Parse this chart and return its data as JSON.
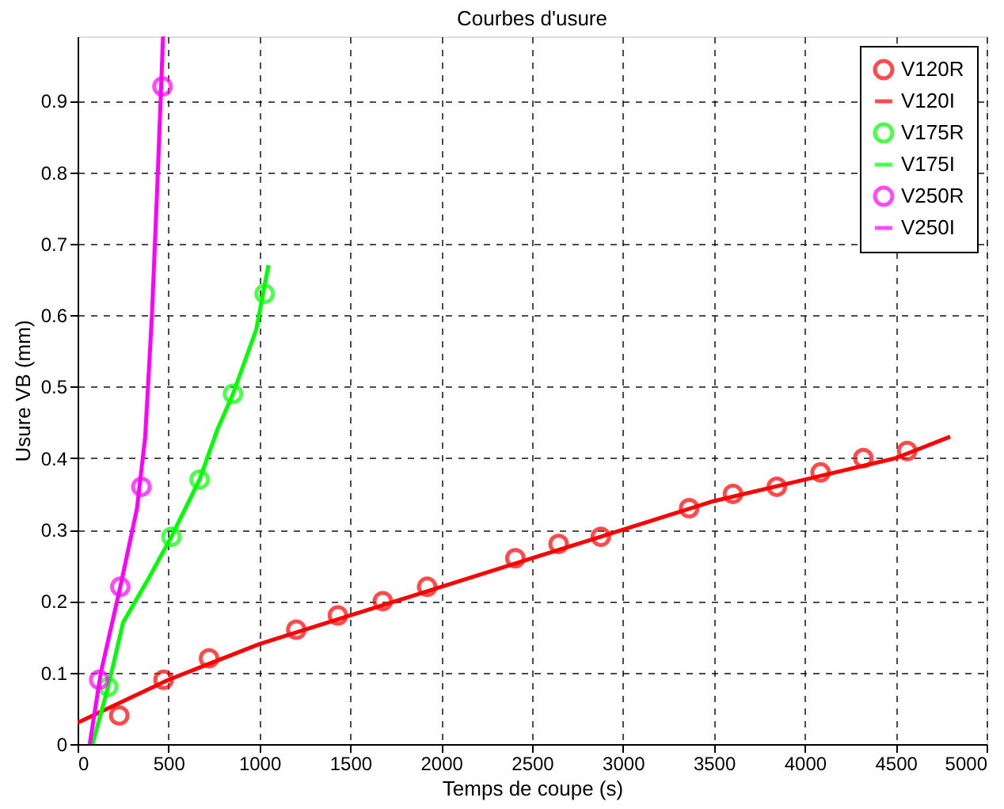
{
  "chart_data": {
    "type": "line",
    "title": "Courbes d'usure",
    "xlabel": "Temps de coupe (s)",
    "ylabel": "Usure VB (mm)",
    "xlim": [
      0,
      5000
    ],
    "xticks": [
      0,
      500,
      1000,
      1500,
      2000,
      2500,
      3000,
      3500,
      4000,
      4500,
      5000
    ],
    "ylim": [
      0,
      0.99
    ],
    "yticks": [
      0,
      0.1,
      0.2,
      0.3,
      0.4,
      0.5,
      0.6,
      0.7,
      0.8,
      0.9
    ],
    "grid": true,
    "legend": "top right",
    "series": [
      {
        "name": "V120R",
        "type": "scatter",
        "marker": "circle",
        "color": "#ff0000",
        "x": [
          229,
          473,
          723,
          1203,
          1432,
          1679,
          1923,
          2408,
          2646,
          2878,
          3364,
          3605,
          3846,
          4087,
          4322,
          4563
        ],
        "values": [
          0.04,
          0.09,
          0.12,
          0.16,
          0.18,
          0.2,
          0.22,
          0.26,
          0.28,
          0.29,
          0.33,
          0.35,
          0.36,
          0.38,
          0.4,
          0.41
        ]
      },
      {
        "name": "V120I",
        "type": "line",
        "line_style": "solid",
        "color": "#ff0000",
        "x": [
          0,
          500,
          1000,
          1500,
          2000,
          2500,
          3000,
          3500,
          4000,
          4500,
          4800
        ],
        "values": [
          0.03,
          0.09,
          0.14,
          0.18,
          0.22,
          0.26,
          0.3,
          0.34,
          0.37,
          0.4,
          0.43
        ]
      },
      {
        "name": "V175R",
        "type": "scatter",
        "marker": "circle",
        "color": "#00ff00",
        "x": [
          168,
          516,
          671,
          855,
          1029
        ],
        "values": [
          0.08,
          0.29,
          0.37,
          0.49,
          0.63
        ]
      },
      {
        "name": "V175I",
        "type": "line",
        "line_style": "solid",
        "color": "#00ff00",
        "x": [
          82,
          168,
          250,
          387,
          516,
          671,
          769,
          855,
          983,
          1050
        ],
        "values": [
          0,
          0.08,
          0.17,
          0.23,
          0.29,
          0.37,
          0.44,
          0.49,
          0.58,
          0.67
        ]
      },
      {
        "name": "V250R",
        "type": "scatter",
        "marker": "circle",
        "color": "#ff00ff",
        "x": [
          119,
          235,
          351,
          467
        ],
        "values": [
          0.09,
          0.22,
          0.36,
          0.92
        ]
      },
      {
        "name": "V250I",
        "type": "line",
        "line_style": "solid",
        "color": "#ff00ff",
        "x": [
          67,
          128,
          235,
          327,
          372,
          409,
          440,
          470
        ],
        "values": [
          0,
          0.1,
          0.22,
          0.33,
          0.43,
          0.6,
          0.79,
          0.99
        ]
      }
    ]
  }
}
